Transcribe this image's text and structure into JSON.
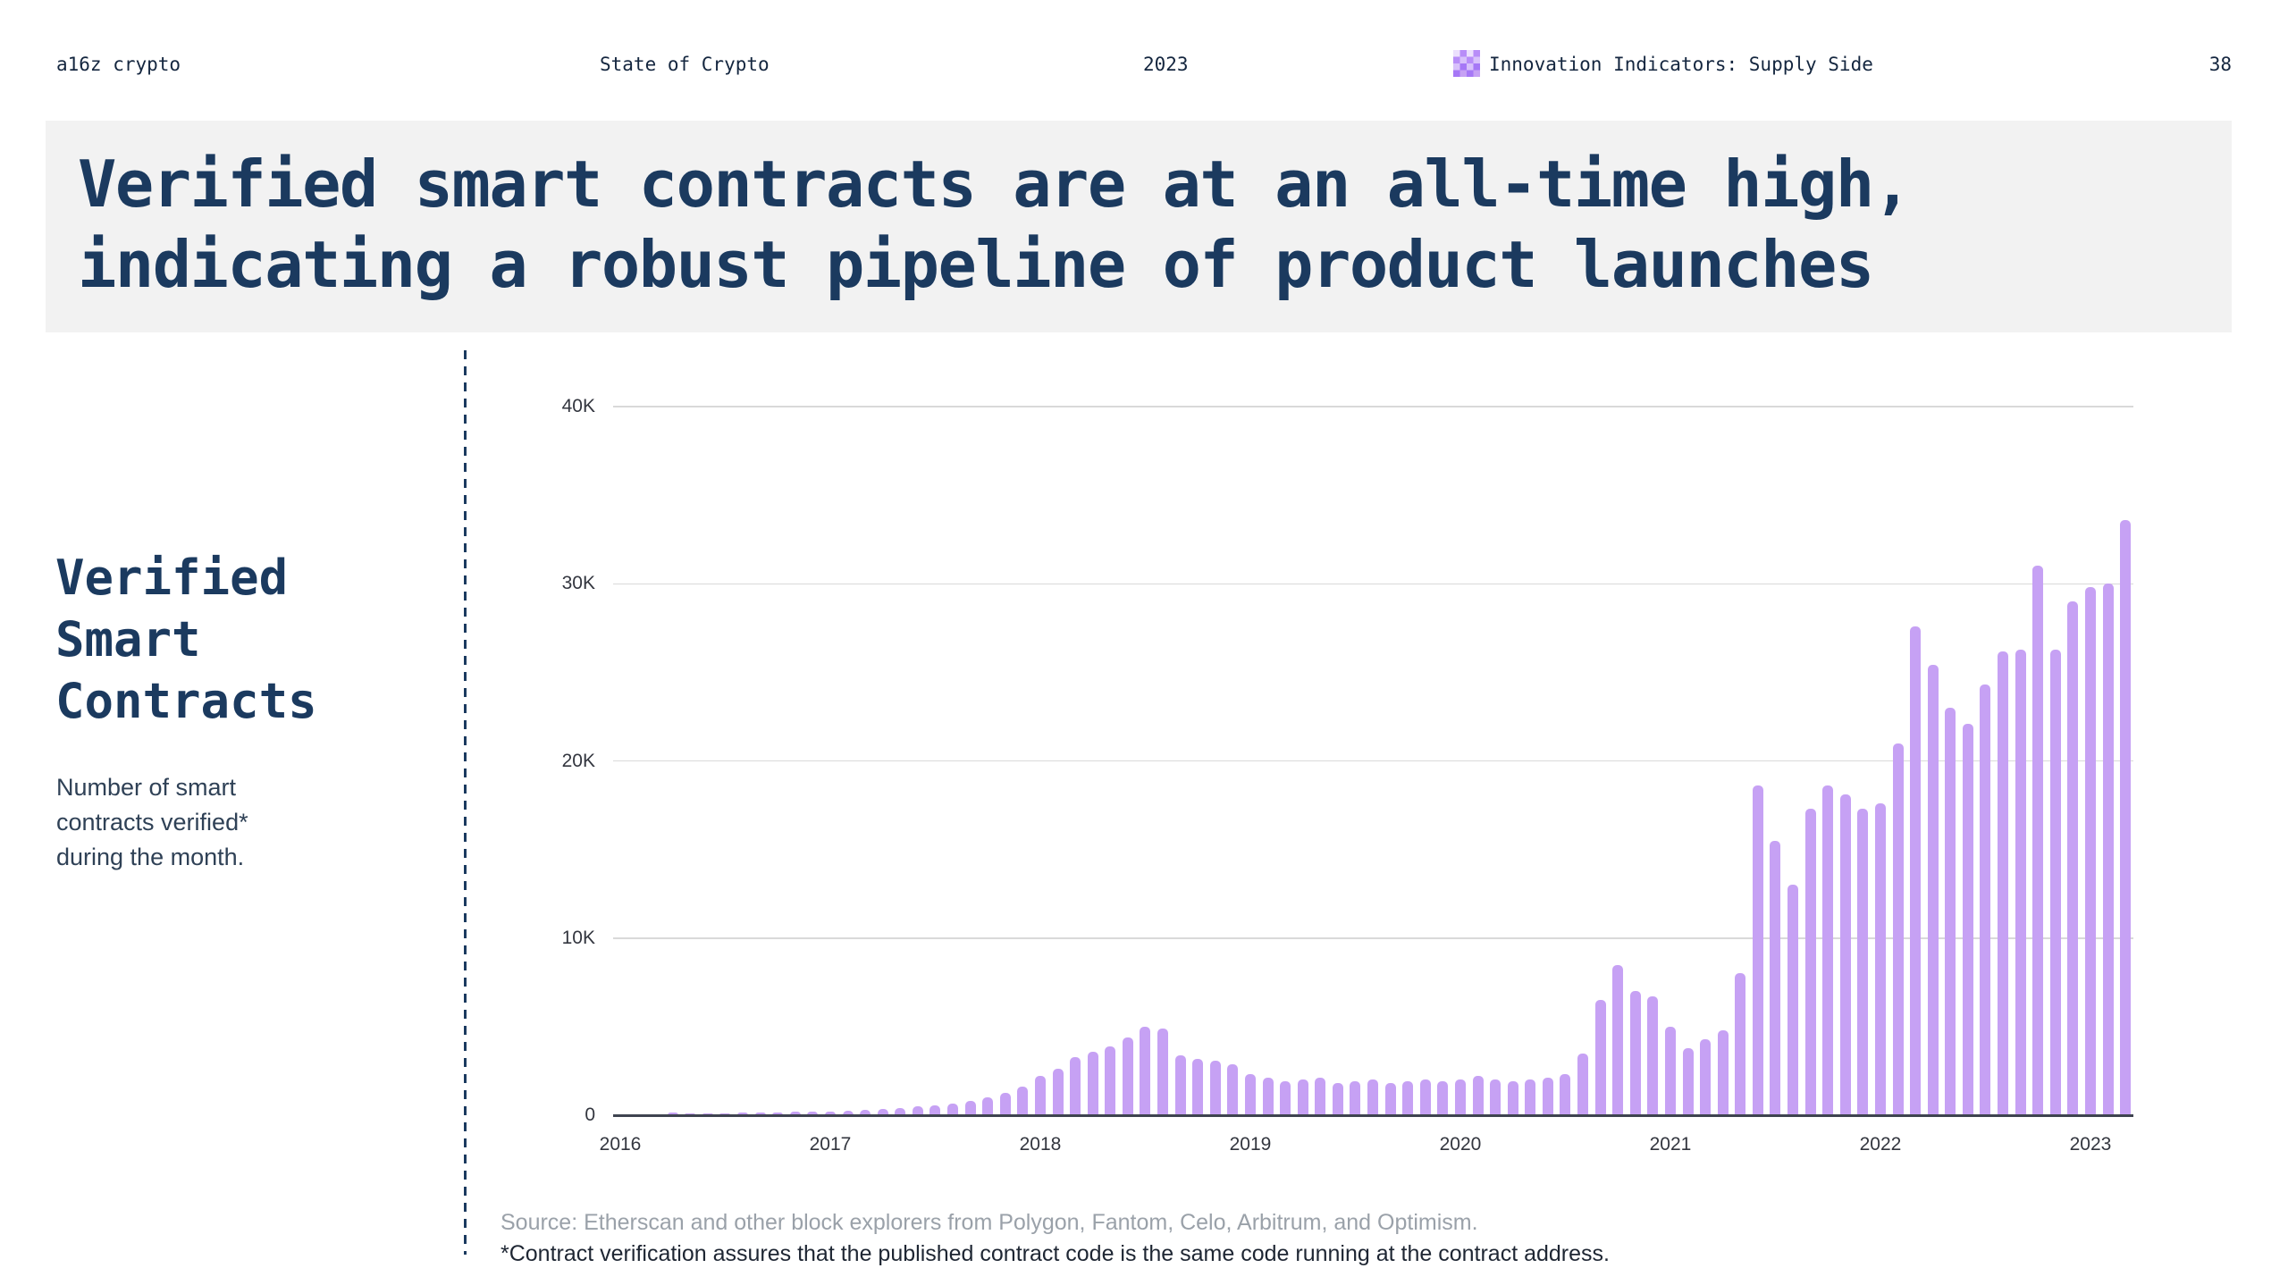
{
  "header": {
    "brand": "a16z crypto",
    "report": "State of Crypto",
    "year": "2023",
    "section": "Innovation Indicators: Supply Side",
    "section_icon": "dither-grid-icon",
    "page": "38"
  },
  "title": "Verified smart contracts are at an all-time high, indicating a robust pipeline of product launches",
  "sidebar": {
    "heading": "Verified Smart Contracts",
    "description": "Number of smart contracts verified* during the month."
  },
  "footnotes": {
    "source": "Source: Etherscan and other block explorers from Polygon, Fantom, Celo, Arbitrum, and Optimism.",
    "note": "*Contract verification assures that the published contract code is the same code running at the contract address."
  },
  "colors": {
    "navy": "#1b3a5f",
    "bar": "#c6a1f4",
    "grid": "#d9d9d9",
    "axis": "#3f4450",
    "axis_text": "#33363f",
    "title_bg": "#f2f2f2",
    "source_gray": "#9aa1a9",
    "panel_text": "#2f4156",
    "text_dark": "#1e2633",
    "icon_purple": "#b88df8"
  },
  "chart_data": {
    "type": "bar",
    "title": "Verified Smart Contracts",
    "xlabel": "",
    "ylabel": "",
    "x_start": "2016-01",
    "x_end": "2023-03",
    "ylim": [
      0,
      40000
    ],
    "yticks": [
      "0",
      "10K",
      "20K",
      "30K",
      "40K"
    ],
    "ytick_values": [
      0,
      10000,
      20000,
      30000,
      40000
    ],
    "year_labels": [
      "2016",
      "2017",
      "2018",
      "2019",
      "2020",
      "2021",
      "2022",
      "2023"
    ],
    "grid": "horizontal",
    "legend": "none",
    "values": [
      30,
      40,
      60,
      150,
      90,
      100,
      120,
      150,
      170,
      160,
      180,
      200,
      220,
      250,
      280,
      330,
      420,
      480,
      560,
      650,
      800,
      1000,
      1250,
      1600,
      2200,
      2600,
      3300,
      3600,
      3900,
      4400,
      5000,
      4900,
      3400,
      3200,
      3100,
      2900,
      2300,
      2100,
      1900,
      2000,
      2100,
      1800,
      1900,
      2000,
      1800,
      1900,
      2000,
      1900,
      2000,
      2200,
      2000,
      1900,
      2000,
      2100,
      2300,
      3500,
      6500,
      8500,
      7000,
      6700,
      5000,
      3800,
      4300,
      4800,
      8000,
      18600,
      15500,
      13000,
      17300,
      18600,
      18100,
      17300,
      17600,
      21000,
      27600,
      25400,
      23000,
      22100,
      24300,
      26200,
      26300,
      31000,
      26300,
      29000,
      29800,
      30000,
      33600
    ]
  }
}
